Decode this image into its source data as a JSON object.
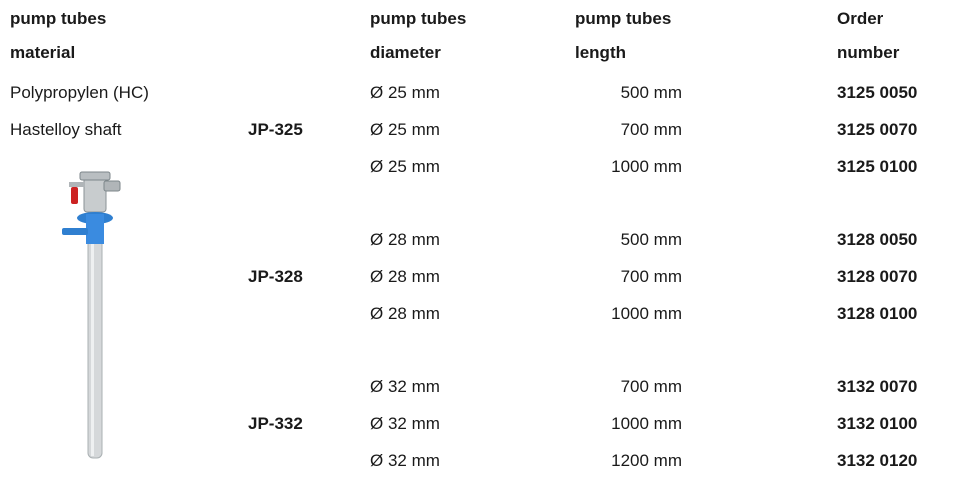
{
  "header": {
    "columns": [
      {
        "line1": "pump tubes",
        "line2": "material"
      },
      {
        "line1": "pump tubes",
        "line2": "diameter"
      },
      {
        "line1": "pump tubes",
        "line2": "length"
      },
      {
        "line1": "Order",
        "line2": "number"
      }
    ]
  },
  "material": [
    "Polypropylen (HC)",
    "Hastelloy shaft"
  ],
  "groups": [
    {
      "model": "JP-325",
      "rows": [
        [
          "Ø 25 mm",
          "500 mm",
          "3125 0050"
        ],
        [
          "Ø 25 mm",
          "700 mm",
          "3125 0070"
        ],
        [
          "Ø 25 mm",
          "1000 mm",
          "3125 0100"
        ]
      ]
    },
    {
      "model": "JP-328",
      "rows": [
        [
          "Ø 28 mm",
          "500 mm",
          "3128 0050"
        ],
        [
          "Ø 28 mm",
          "700 mm",
          "3128 0070"
        ],
        [
          "Ø 28 mm",
          "1000 mm",
          "3128 0100"
        ]
      ]
    },
    {
      "model": "JP-332",
      "rows": [
        [
          "Ø 32 mm",
          "700 mm",
          "3132 0070"
        ],
        [
          "Ø 32 mm",
          "1000 mm",
          "3132 0100"
        ],
        [
          "Ø 32 mm",
          "1200 mm",
          "3132 0120"
        ]
      ]
    }
  ]
}
